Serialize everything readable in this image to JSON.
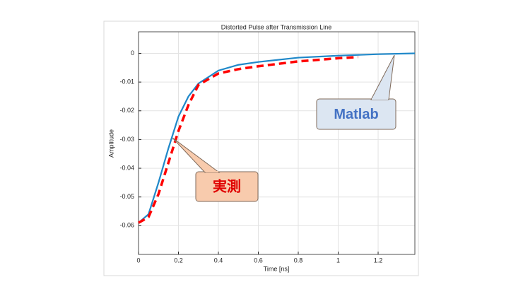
{
  "chart_data": {
    "type": "line",
    "title": "Distorted Pulse after Transmission Line",
    "xlabel": "Time [ns]",
    "ylabel": "Amplitude",
    "xlim": [
      0,
      1.384
    ],
    "ylim": [
      -0.07,
      0.0075
    ],
    "xticks": [
      0,
      0.2,
      0.4,
      0.6,
      0.8,
      1,
      1.2
    ],
    "yticks": [
      0,
      -0.01,
      -0.02,
      -0.03,
      -0.04,
      -0.05,
      -0.06
    ],
    "grid": true,
    "series": [
      {
        "color": "#1f88c9",
        "style": "solid",
        "x": [
          0,
          0.05,
          0.1,
          0.15,
          0.2,
          0.25,
          0.3,
          0.4,
          0.5,
          0.6,
          0.8,
          1.0,
          1.2,
          1.384
        ],
        "values": [
          -0.059,
          -0.056,
          -0.045,
          -0.033,
          -0.022,
          -0.015,
          -0.0105,
          -0.006,
          -0.004,
          -0.003,
          -0.0015,
          -0.0008,
          -0.0003,
          0
        ]
      },
      {
        "color": "#ff0000",
        "style": "dashed",
        "x": [
          0,
          0.05,
          0.1,
          0.15,
          0.2,
          0.25,
          0.3,
          0.4,
          0.5,
          0.6,
          0.8,
          1.0,
          1.1
        ],
        "values": [
          -0.059,
          -0.057,
          -0.049,
          -0.038,
          -0.027,
          -0.018,
          -0.011,
          -0.007,
          -0.0055,
          -0.0045,
          -0.0028,
          -0.0017,
          -0.0013
        ]
      }
    ],
    "annotations": [
      {
        "text": "Matlab",
        "color": "#4472c4",
        "fill": "#dce6f2"
      },
      {
        "text": "実測",
        "color": "#e00000",
        "fill": "#f8cbad"
      }
    ]
  }
}
